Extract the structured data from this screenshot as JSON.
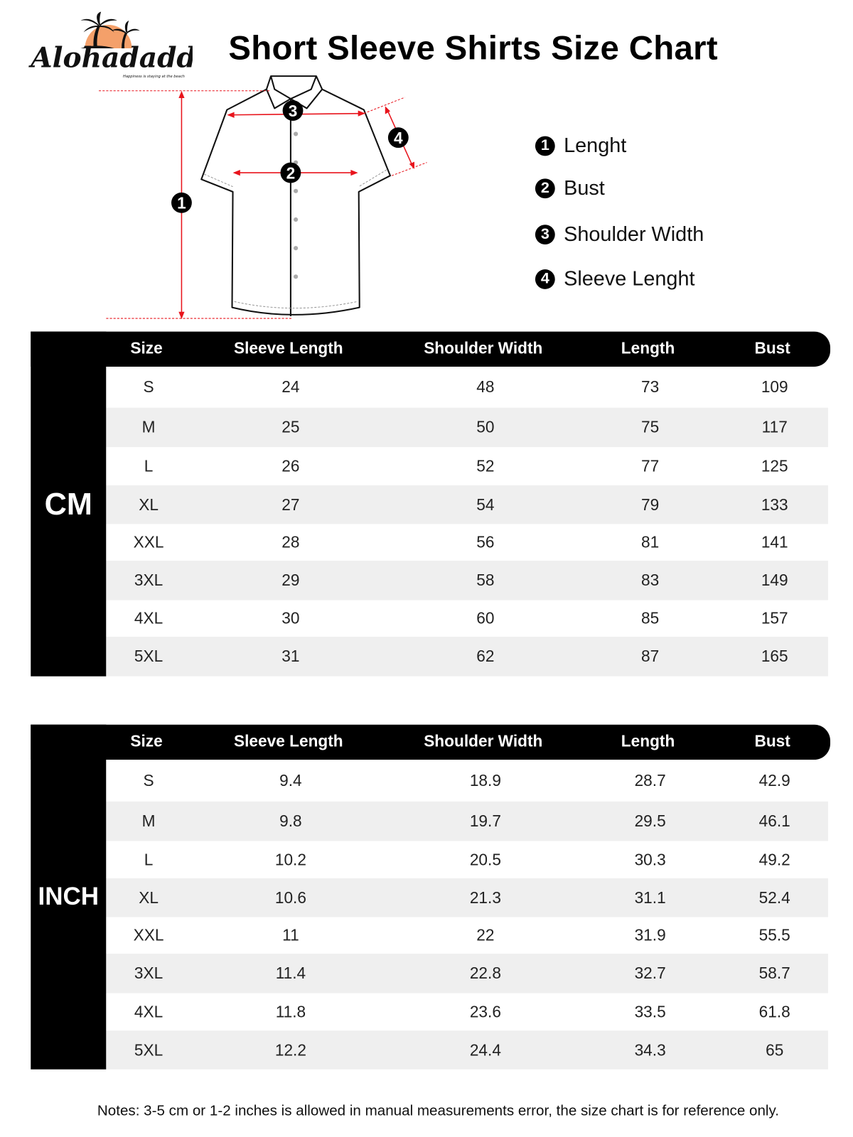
{
  "logo": {
    "brand": "Alohadaddy",
    "tagline": "Happiness is staying at the beach",
    "colors": {
      "sun": "#f4a06a",
      "ink": "#111111"
    }
  },
  "title": "Short Sleeve Shirts Size Chart",
  "diagram": {
    "markers": [
      "1",
      "2",
      "3",
      "4"
    ],
    "arrow_color": "#e8141c"
  },
  "legend": [
    {
      "num": "1",
      "label": "Lenght"
    },
    {
      "num": "2",
      "label": "Bust"
    },
    {
      "num": "3",
      "label": "Shoulder Width"
    },
    {
      "num": "4",
      "label": "Sleeve Lenght"
    }
  ],
  "columns": [
    "Size",
    "Sleeve Length",
    "Shoulder Width",
    "Length",
    "Bust"
  ],
  "tables": [
    {
      "unit": "CM",
      "rows": [
        [
          "S",
          "24",
          "48",
          "73",
          "109"
        ],
        [
          "M",
          "25",
          "50",
          "75",
          "117"
        ],
        [
          "L",
          "26",
          "52",
          "77",
          "125"
        ],
        [
          "XL",
          "27",
          "54",
          "79",
          "133"
        ],
        [
          "XXL",
          "28",
          "56",
          "81",
          "141"
        ],
        [
          "3XL",
          "29",
          "58",
          "83",
          "149"
        ],
        [
          "4XL",
          "30",
          "60",
          "85",
          "157"
        ],
        [
          "5XL",
          "31",
          "62",
          "87",
          "165"
        ]
      ]
    },
    {
      "unit": "INCH",
      "rows": [
        [
          "S",
          "9.4",
          "18.9",
          "28.7",
          "42.9"
        ],
        [
          "M",
          "9.8",
          "19.7",
          "29.5",
          "46.1"
        ],
        [
          "L",
          "10.2",
          "20.5",
          "30.3",
          "49.2"
        ],
        [
          "XL",
          "10.6",
          "21.3",
          "31.1",
          "52.4"
        ],
        [
          "XXL",
          "11",
          "22",
          "31.9",
          "55.5"
        ],
        [
          "3XL",
          "11.4",
          "22.8",
          "32.7",
          "58.7"
        ],
        [
          "4XL",
          "11.8",
          "23.6",
          "33.5",
          "61.8"
        ],
        [
          "5XL",
          "12.2",
          "24.4",
          "34.3",
          "65"
        ]
      ]
    }
  ],
  "row_colors": {
    "odd": "#ffffff",
    "even": "#efefef"
  },
  "notes": "Notes: 3-5 cm or 1-2 inches is allowed in manual measurements error, the size chart is for reference only."
}
